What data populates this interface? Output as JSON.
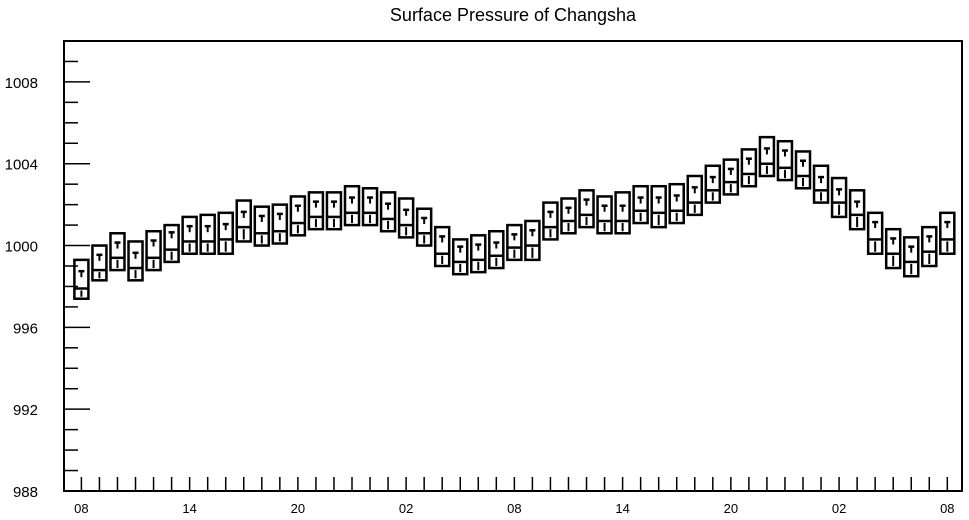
{
  "chart_data": {
    "type": "box",
    "title": "Surface Pressure of Changsha",
    "xlabel": "",
    "ylabel": "",
    "ylim": [
      988,
      1010
    ],
    "yticks": [
      988,
      992,
      996,
      1000,
      1004,
      1008
    ],
    "x_tick_labels": [
      "08",
      "14",
      "20",
      "02",
      "08",
      "14",
      "20",
      "02",
      "08"
    ],
    "x_tick_label_positions": [
      0,
      6,
      12,
      18,
      24,
      30,
      36,
      42,
      48
    ],
    "grid": false,
    "series": [
      {
        "x": [
          0,
          1,
          2,
          3,
          4,
          5,
          6,
          7,
          8,
          9,
          10,
          11,
          12,
          13,
          14,
          15,
          16,
          17,
          18,
          19,
          20,
          21,
          22,
          23,
          24,
          25,
          26,
          27,
          28,
          29,
          30,
          31,
          32,
          33,
          34,
          35,
          36,
          37,
          38,
          39,
          40,
          41,
          42,
          43,
          44,
          45,
          46,
          47,
          48
        ],
        "max": [
          999.3,
          1000.0,
          1000.6,
          1000.2,
          1000.7,
          1001.0,
          1001.4,
          1001.5,
          1001.6,
          1002.2,
          1001.9,
          1002.0,
          1002.4,
          1002.6,
          1002.6,
          1002.9,
          1002.8,
          1002.6,
          1002.3,
          1001.8,
          1000.9,
          1000.3,
          1000.5,
          1000.7,
          1001.0,
          1001.2,
          1002.1,
          1002.3,
          1002.7,
          1002.4,
          1002.6,
          1002.9,
          1002.9,
          1003.0,
          1003.4,
          1003.9,
          1004.2,
          1004.7,
          1005.3,
          1005.1,
          1004.6,
          1003.9,
          1003.3,
          1002.7,
          1001.6,
          1000.8,
          1000.4,
          1000.9,
          1001.6
        ],
        "median": [
          998.6,
          999.4,
          1000.0,
          999.5,
          1000.1,
          1000.5,
          1000.8,
          1000.8,
          1000.9,
          1001.5,
          1001.3,
          1001.4,
          1001.8,
          1002.0,
          1002.0,
          1002.2,
          1002.2,
          1001.9,
          1001.6,
          1001.2,
          1000.3,
          999.8,
          999.9,
          1000.0,
          1000.4,
          1000.6,
          1001.5,
          1001.7,
          1002.1,
          1001.8,
          1001.8,
          1002.2,
          1002.2,
          1002.3,
          1002.7,
          1003.2,
          1003.6,
          1004.1,
          1004.6,
          1004.5,
          1004.0,
          1003.2,
          1002.6,
          1002.0,
          1001.0,
          1000.2,
          999.8,
          1000.3,
          1001.0
        ],
        "q1": [
          997.4,
          998.3,
          998.8,
          998.3,
          998.8,
          999.2,
          999.6,
          999.6,
          999.6,
          1000.2,
          1000.0,
          1000.1,
          1000.5,
          1000.8,
          1000.8,
          1001.0,
          1001.0,
          1000.7,
          1000.4,
          1000.0,
          999.0,
          998.6,
          998.7,
          998.9,
          999.3,
          999.3,
          1000.3,
          1000.6,
          1000.9,
          1000.6,
          1000.6,
          1001.1,
          1000.9,
          1001.1,
          1001.5,
          1002.1,
          1002.5,
          1002.9,
          1003.4,
          1003.2,
          1002.8,
          1002.1,
          1001.4,
          1000.8,
          999.6,
          998.9,
          998.5,
          999.0,
          999.6
        ],
        "q3": [
          997.9,
          998.8,
          999.4,
          998.9,
          999.4,
          999.8,
          1000.2,
          1000.2,
          1000.3,
          1000.9,
          1000.6,
          1000.7,
          1001.1,
          1001.4,
          1001.4,
          1001.6,
          1001.6,
          1001.3,
          1001.0,
          1000.6,
          999.6,
          999.2,
          999.3,
          999.5,
          999.9,
          1000.0,
          1000.9,
          1001.2,
          1001.5,
          1001.2,
          1001.2,
          1001.7,
          1001.6,
          1001.7,
          1002.1,
          1002.7,
          1003.1,
          1003.5,
          1004.0,
          1003.8,
          1003.4,
          1002.7,
          1002.1,
          1001.5,
          1000.3,
          999.6,
          999.2,
          999.7,
          1000.3
        ]
      }
    ]
  }
}
